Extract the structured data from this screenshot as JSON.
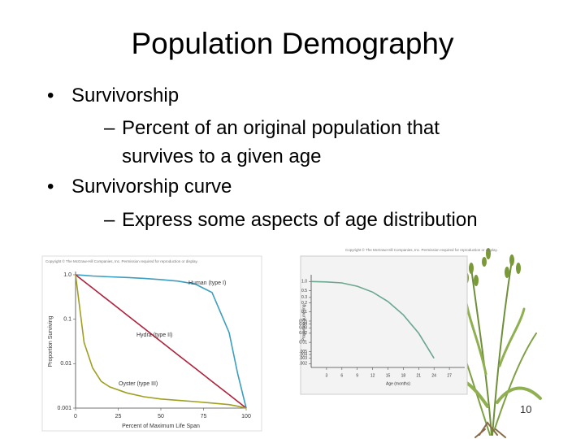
{
  "title": "Population Demography",
  "bullets": [
    {
      "text": "Survivorship",
      "sub": [
        "Percent of an original population that survives to a given age"
      ]
    },
    {
      "text": "Survivorship curve",
      "sub": [
        "Express some aspects of age distribution"
      ]
    }
  ],
  "page_number": 10,
  "chart_data": [
    {
      "type": "line",
      "source": "Copyright © The McGraw-Hill Companies, Inc. Permission required for reproduction or display.",
      "x_label": "Percent of Maximum Life Span",
      "y_label": "Proportion Surviving",
      "log_y": true,
      "x": [
        0,
        5,
        10,
        15,
        20,
        30,
        40,
        50,
        60,
        70,
        80,
        90,
        95,
        100
      ],
      "series": [
        {
          "name": "Human (type I)",
          "color": "#3a9ec0",
          "values": [
            1,
            0.97,
            0.94,
            0.92,
            0.9,
            0.87,
            0.83,
            0.78,
            0.72,
            0.62,
            0.4,
            0.05,
            0.006,
            0.001
          ]
        },
        {
          "name": "Hydra (type II)",
          "color": "#b0203a",
          "values": [
            1,
            0.708,
            0.501,
            0.355,
            0.251,
            0.126,
            0.0631,
            0.0316,
            0.0158,
            0.00794,
            0.00398,
            0.002,
            0.00141,
            0.001
          ]
        },
        {
          "name": "Oyster (type III)",
          "color": "#a0a020",
          "values": [
            1,
            0.03,
            0.008,
            0.004,
            0.003,
            0.0022,
            0.0018,
            0.0016,
            0.0015,
            0.0014,
            0.0013,
            0.0012,
            0.0011,
            0.001
          ]
        }
      ],
      "xlim": [
        0,
        100
      ],
      "xticks": [
        0,
        25,
        50,
        75,
        100
      ],
      "ylim": [
        0.001,
        1
      ],
      "yticks": [
        {
          "value": 1,
          "label": "1.0"
        },
        0.1,
        0.01,
        0.001
      ]
    },
    {
      "type": "line",
      "source": "Copyright © The McGraw-Hill Companies, Inc. Permission required for reproduction or display.",
      "x_label": "Age (months)",
      "y_label": "Proportion Surviving",
      "log_y": true,
      "x": [
        0,
        3,
        6,
        9,
        12,
        15,
        18,
        21,
        24
      ],
      "series": [
        {
          "name": null,
          "color": "#6aa78e",
          "values": [
            1,
            0.97,
            0.9,
            0.7,
            0.45,
            0.22,
            0.08,
            0.02,
            0.003
          ]
        }
      ],
      "xlim": [
        0,
        30
      ],
      "xticks": [
        3,
        6,
        9,
        12,
        15,
        18,
        21,
        24,
        27
      ],
      "ylim": [
        0.0015,
        1.3
      ],
      "yticks": [
        {
          "value": 1,
          "label": "1.0"
        },
        0.5,
        0.3,
        0.2,
        0.1,
        0.05,
        0.04,
        0.03,
        0.02,
        0.01,
        {
          "value": 0.005,
          "label": ".005"
        },
        {
          "value": 0.004,
          "label": ".004"
        },
        {
          "value": 0.003,
          "label": ".003"
        },
        {
          "value": 0.002,
          "label": ".002"
        }
      ]
    }
  ]
}
